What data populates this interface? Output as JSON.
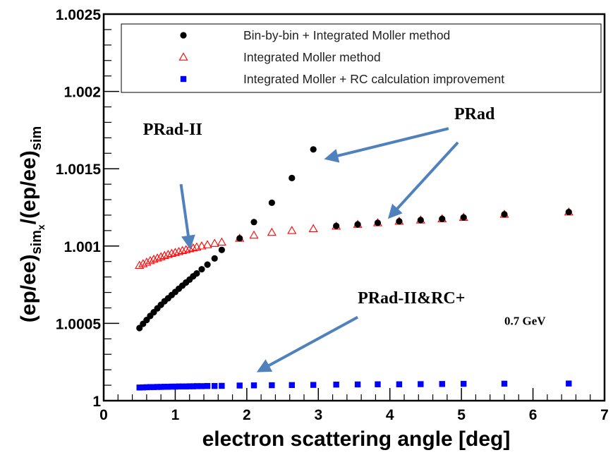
{
  "chart_data": {
    "type": "scatter",
    "xlabel": "electron scattering angle [deg]",
    "ylabel": {
      "part1": "(ep/ee)",
      "sub1": "sim",
      "sub1sub": "x",
      "part2": "/(ep/ee)",
      "sub2": "sim"
    },
    "xlim": [
      0,
      7
    ],
    "ylim": [
      1.0,
      1.0025
    ],
    "xticks": [
      0,
      1,
      2,
      3,
      4,
      5,
      6,
      7
    ],
    "xtick_labels": [
      "0",
      "1",
      "2",
      "3",
      "4",
      "5",
      "6",
      "7"
    ],
    "yticks": [
      1.0,
      1.0005,
      1.001,
      1.0015,
      1.002,
      1.0025
    ],
    "ytick_labels": [
      "1",
      "1.0005",
      "1.001",
      "1.0015",
      "1.002",
      "1.0025"
    ],
    "grid": false,
    "legend_position": "top",
    "series": [
      {
        "name": "Bin-by-bin + Integrated Moller method",
        "marker": "filled-circle",
        "color": "#000000",
        "x": [
          0.5,
          0.55,
          0.6,
          0.65,
          0.7,
          0.75,
          0.8,
          0.85,
          0.9,
          0.95,
          1.0,
          1.05,
          1.1,
          1.15,
          1.2,
          1.25,
          1.3,
          1.37,
          1.45,
          1.55,
          1.65,
          1.9,
          2.1,
          2.35,
          2.63,
          2.93,
          3.25,
          3.55,
          3.83,
          4.13,
          4.43,
          4.73,
          5.03,
          5.6,
          6.5
        ],
        "y": [
          1.00047,
          1.000497,
          1.000522,
          1.000548,
          1.000572,
          1.000597,
          1.00062,
          1.000643,
          1.000662,
          1.000683,
          1.000703,
          1.000724,
          1.000744,
          1.000764,
          1.000783,
          1.000804,
          1.000823,
          1.00085,
          1.00088,
          1.00092,
          1.000975,
          1.00105,
          1.001155,
          1.00128,
          1.00144,
          1.001625,
          1.00113,
          1.00114,
          1.00115,
          1.00116,
          1.001168,
          1.001176,
          1.001185,
          1.001205,
          1.00122
        ]
      },
      {
        "name": "Integrated Moller method",
        "marker": "open-triangle",
        "color": "#ff0000",
        "x": [
          0.5,
          0.55,
          0.6,
          0.65,
          0.7,
          0.75,
          0.8,
          0.85,
          0.9,
          0.95,
          1.0,
          1.05,
          1.1,
          1.15,
          1.2,
          1.25,
          1.3,
          1.37,
          1.45,
          1.55,
          1.65,
          1.9,
          2.1,
          2.35,
          2.63,
          2.93,
          3.25,
          3.55,
          3.83,
          4.13,
          4.43,
          4.73,
          5.03,
          5.6,
          6.5
        ],
        "y": [
          1.000875,
          1.000885,
          1.000895,
          1.000905,
          1.000914,
          1.000922,
          1.00093,
          1.000938,
          1.000945,
          1.000952,
          1.000958,
          1.000964,
          1.00097,
          1.000976,
          1.000982,
          1.000987,
          1.000993,
          1.001,
          1.001008,
          1.001017,
          1.001025,
          1.00105,
          1.00107,
          1.001088,
          1.0011,
          1.001112,
          1.001128,
          1.00114,
          1.00115,
          1.00116,
          1.001168,
          1.001176,
          1.001185,
          1.001205,
          1.00122
        ]
      },
      {
        "name": "Integrated Moller + RC calculation improvement",
        "marker": "filled-square",
        "color": "#0000ff",
        "x": [
          0.5,
          0.55,
          0.6,
          0.65,
          0.7,
          0.75,
          0.8,
          0.85,
          0.9,
          0.95,
          1.0,
          1.05,
          1.1,
          1.15,
          1.2,
          1.25,
          1.3,
          1.37,
          1.45,
          1.55,
          1.65,
          1.9,
          2.1,
          2.35,
          2.63,
          2.93,
          3.25,
          3.55,
          3.83,
          4.13,
          4.43,
          4.73,
          5.03,
          5.6,
          6.5
        ],
        "y": [
          1.000085,
          1.000086,
          1.000087,
          1.000088,
          1.000088,
          1.000089,
          1.000089,
          1.00009,
          1.00009,
          1.000091,
          1.000091,
          1.000092,
          1.000092,
          1.000092,
          1.000093,
          1.000093,
          1.000094,
          1.000094,
          1.000095,
          1.000095,
          1.000096,
          1.000098,
          1.000099,
          1.0001,
          1.000101,
          1.000102,
          1.000104,
          1.000105,
          1.000106,
          1.000106,
          1.000107,
          1.000108,
          1.000109,
          1.00011,
          1.000111
        ]
      }
    ],
    "annotations": [
      {
        "text": "PRad-II",
        "x": 0.55,
        "y": 1.00172,
        "size": 24
      },
      {
        "text": "PRad",
        "x": 4.9,
        "y": 1.00182,
        "size": 24
      },
      {
        "text": "PRad-II&RC+",
        "x": 3.55,
        "y": 1.00063,
        "size": 24
      },
      {
        "text": "0.7 GeV",
        "x": 5.6,
        "y": 1.00049,
        "size": 17
      }
    ],
    "arrows": [
      {
        "from": [
          1.08,
          1.0014
        ],
        "to": [
          1.2,
          1.00101
        ]
      },
      {
        "from": [
          4.82,
          1.00176
        ],
        "to": [
          3.15,
          1.00157
        ]
      },
      {
        "from": [
          4.95,
          1.00167
        ],
        "to": [
          4.02,
          1.0012
        ]
      },
      {
        "from": [
          3.55,
          1.00054
        ],
        "to": [
          2.2,
          1.0002
        ]
      }
    ]
  }
}
